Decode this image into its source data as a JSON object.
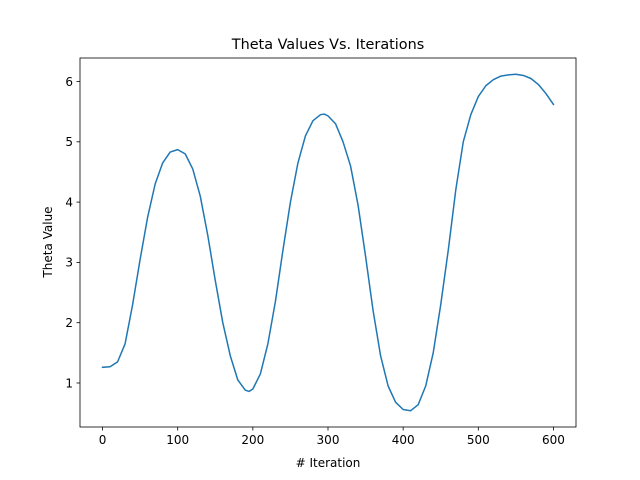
{
  "chart_data": {
    "type": "line",
    "title": "Theta Values Vs. Iterations",
    "xlabel": "# Iteration",
    "ylabel": "Theta Value",
    "xlim": [
      -30,
      630
    ],
    "ylim": [
      0.27,
      6.39
    ],
    "xticks": [
      0,
      100,
      200,
      300,
      400,
      500,
      600
    ],
    "yticks": [
      1,
      2,
      3,
      4,
      5,
      6
    ],
    "grid": false,
    "series": [
      {
        "color": "#1f77b4",
        "points": [
          [
            0,
            1.26
          ],
          [
            10,
            1.27
          ],
          [
            20,
            1.35
          ],
          [
            30,
            1.65
          ],
          [
            40,
            2.3
          ],
          [
            50,
            3.05
          ],
          [
            60,
            3.75
          ],
          [
            70,
            4.3
          ],
          [
            80,
            4.65
          ],
          [
            90,
            4.83
          ],
          [
            100,
            4.87
          ],
          [
            110,
            4.8
          ],
          [
            120,
            4.55
          ],
          [
            130,
            4.1
          ],
          [
            140,
            3.45
          ],
          [
            150,
            2.7
          ],
          [
            160,
            2.0
          ],
          [
            170,
            1.45
          ],
          [
            180,
            1.05
          ],
          [
            190,
            0.88
          ],
          [
            195,
            0.86
          ],
          [
            200,
            0.9
          ],
          [
            210,
            1.15
          ],
          [
            220,
            1.65
          ],
          [
            230,
            2.35
          ],
          [
            240,
            3.2
          ],
          [
            250,
            4.0
          ],
          [
            260,
            4.65
          ],
          [
            270,
            5.1
          ],
          [
            280,
            5.35
          ],
          [
            290,
            5.45
          ],
          [
            295,
            5.46
          ],
          [
            300,
            5.43
          ],
          [
            310,
            5.3
          ],
          [
            320,
            5.0
          ],
          [
            330,
            4.6
          ],
          [
            340,
            3.95
          ],
          [
            350,
            3.1
          ],
          [
            360,
            2.2
          ],
          [
            370,
            1.45
          ],
          [
            380,
            0.95
          ],
          [
            390,
            0.68
          ],
          [
            400,
            0.56
          ],
          [
            410,
            0.54
          ],
          [
            420,
            0.64
          ],
          [
            430,
            0.95
          ],
          [
            440,
            1.5
          ],
          [
            450,
            2.3
          ],
          [
            460,
            3.2
          ],
          [
            470,
            4.2
          ],
          [
            480,
            5.0
          ],
          [
            490,
            5.45
          ],
          [
            500,
            5.75
          ],
          [
            510,
            5.93
          ],
          [
            520,
            6.03
          ],
          [
            530,
            6.09
          ],
          [
            540,
            6.11
          ],
          [
            550,
            6.12
          ],
          [
            560,
            6.1
          ],
          [
            570,
            6.05
          ],
          [
            580,
            5.95
          ],
          [
            590,
            5.8
          ],
          [
            600,
            5.62
          ]
        ]
      }
    ]
  }
}
